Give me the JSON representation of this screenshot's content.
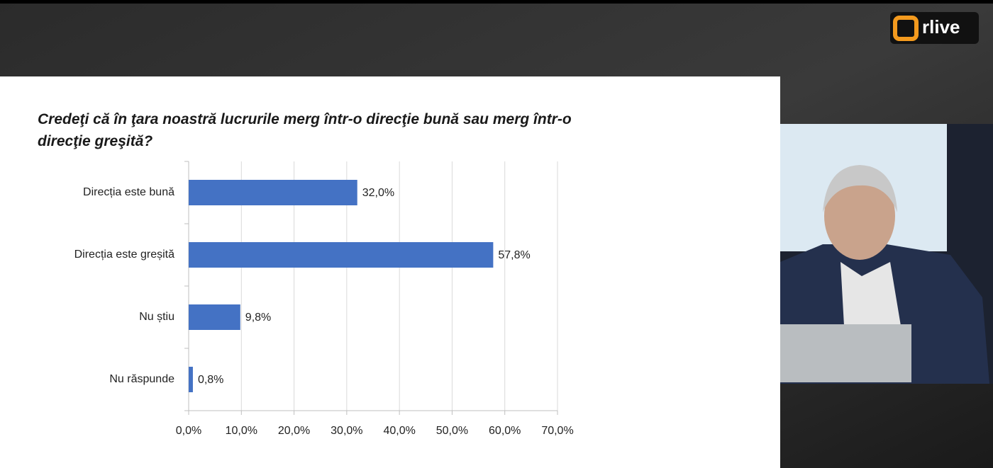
{
  "logo": "rlive",
  "chart_data": {
    "type": "bar",
    "orientation": "horizontal",
    "title": "Credeţi că în ţara noastră lucrurile merg într-o direcţie bună sau merg într-o direcţie greşită?",
    "categories": [
      "Direcția este bună",
      "Direcția este greșită",
      "Nu știu",
      "Nu răspunde"
    ],
    "values": [
      32.0,
      57.8,
      9.8,
      0.8
    ],
    "value_labels": [
      "32,0%",
      "57,8%",
      "9,8%",
      "0,8%"
    ],
    "color": "#4472c4",
    "xlim": [
      0,
      70
    ],
    "xticks": [
      {
        "value": 0,
        "label": "0,0%"
      },
      {
        "value": 10,
        "label": "10,0%"
      },
      {
        "value": 20,
        "label": "20,0%"
      },
      {
        "value": 30,
        "label": "30,0%"
      },
      {
        "value": 40,
        "label": "40,0%"
      },
      {
        "value": 50,
        "label": "50,0%"
      },
      {
        "value": 60,
        "label": "60,0%"
      },
      {
        "value": 70,
        "label": "70,0%"
      }
    ],
    "grid": true
  }
}
